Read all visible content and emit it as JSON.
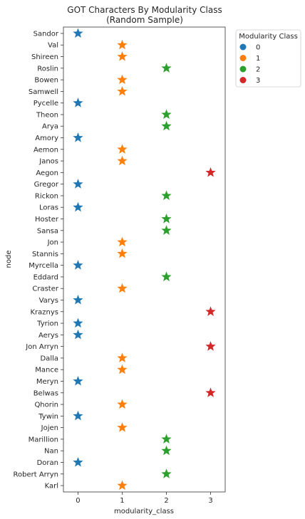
{
  "chart_data": {
    "type": "scatter",
    "title": "GOT Characters By Modularity Class",
    "subtitle": "(Random Sample)",
    "xlabel": "modularity_class",
    "ylabel": "node",
    "xticks": [
      0,
      1,
      2,
      3
    ],
    "xlim": [
      -0.33,
      3.33
    ],
    "marker": "star",
    "grid": false,
    "legend": {
      "title": "Modularity Class",
      "placement": "outside-top-right",
      "entries": [
        {
          "label": "0",
          "color": "#1f77b4"
        },
        {
          "label": "1",
          "color": "#ff7f0e"
        },
        {
          "label": "2",
          "color": "#2ca02c"
        },
        {
          "label": "3",
          "color": "#d62728"
        }
      ]
    },
    "points": [
      {
        "node": "Sandor",
        "x": 0
      },
      {
        "node": "Val",
        "x": 1
      },
      {
        "node": "Shireen",
        "x": 1
      },
      {
        "node": "Roslin",
        "x": 2
      },
      {
        "node": "Bowen",
        "x": 1
      },
      {
        "node": "Samwell",
        "x": 1
      },
      {
        "node": "Pycelle",
        "x": 0
      },
      {
        "node": "Theon",
        "x": 2
      },
      {
        "node": "Arya",
        "x": 2
      },
      {
        "node": "Amory",
        "x": 0
      },
      {
        "node": "Aemon",
        "x": 1
      },
      {
        "node": "Janos",
        "x": 1
      },
      {
        "node": "Aegon",
        "x": 3
      },
      {
        "node": "Gregor",
        "x": 0
      },
      {
        "node": "Rickon",
        "x": 2
      },
      {
        "node": "Loras",
        "x": 0
      },
      {
        "node": "Hoster",
        "x": 2
      },
      {
        "node": "Sansa",
        "x": 2
      },
      {
        "node": "Jon",
        "x": 1
      },
      {
        "node": "Stannis",
        "x": 1
      },
      {
        "node": "Myrcella",
        "x": 0
      },
      {
        "node": "Eddard",
        "x": 2
      },
      {
        "node": "Craster",
        "x": 1
      },
      {
        "node": "Varys",
        "x": 0
      },
      {
        "node": "Kraznys",
        "x": 3
      },
      {
        "node": "Tyrion",
        "x": 0
      },
      {
        "node": "Aerys",
        "x": 0
      },
      {
        "node": "Jon Arryn",
        "x": 3
      },
      {
        "node": "Dalla",
        "x": 1
      },
      {
        "node": "Mance",
        "x": 1
      },
      {
        "node": "Meryn",
        "x": 0
      },
      {
        "node": "Belwas",
        "x": 3
      },
      {
        "node": "Qhorin",
        "x": 1
      },
      {
        "node": "Tywin",
        "x": 0
      },
      {
        "node": "Jojen",
        "x": 1
      },
      {
        "node": "Marillion",
        "x": 2
      },
      {
        "node": "Nan",
        "x": 2
      },
      {
        "node": "Doran",
        "x": 0
      },
      {
        "node": "Robert Arryn",
        "x": 2
      },
      {
        "node": "Karl",
        "x": 1
      }
    ]
  }
}
